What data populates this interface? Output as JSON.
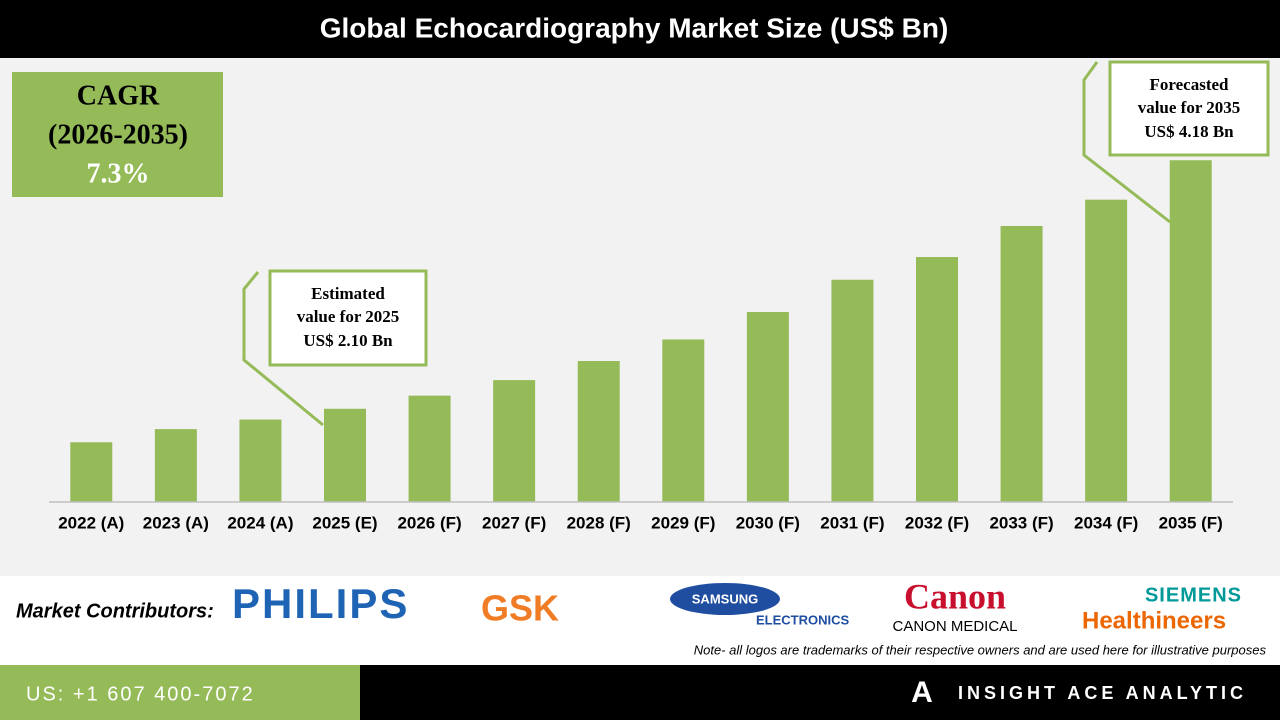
{
  "chart_data": {
    "type": "bar",
    "title": "Global Echocardiography Market Size (US$ Bn)",
    "categories": [
      "2022 (A)",
      "2023 (A)",
      "2024 (A)",
      "2025 (E)",
      "2026 (F)",
      "2027 (F)",
      "2028 (F)",
      "2029 (F)",
      "2030 (F)",
      "2031 (F)",
      "2032 (F)",
      "2033 (F)",
      "2034 (F)",
      "2035 (F)"
    ],
    "values": [
      1.82,
      1.93,
      2.01,
      2.1,
      2.21,
      2.34,
      2.5,
      2.68,
      2.91,
      3.18,
      3.37,
      3.63,
      3.85,
      4.18
    ],
    "color": "#95bb58",
    "ylim": [
      1.32,
      4.5
    ],
    "cagr": {
      "label": [
        "CAGR",
        "(2026-2035)"
      ],
      "value": "7.3%"
    },
    "annotations": [
      {
        "lines": [
          "Estimated",
          "value for 2025",
          "US$ 2.10 Bn"
        ]
      },
      {
        "lines": [
          "Forecasted",
          "value for 2035",
          "US$ 4.18 Bn"
        ]
      }
    ]
  },
  "contributors": {
    "heading": "Market Contributors:",
    "logos": [
      "PHILIPS",
      "GSK",
      "SAMSUNG",
      "ELECTRONICS",
      "Canon",
      "CANON MEDICAL",
      "SIEMENS",
      "Healthineers"
    ],
    "note": "Note- all logos are trademarks of their respective owners and are used here for illustrative purposes"
  },
  "footer": {
    "phone": "US: +1 607 400-7072",
    "brand": "INSIGHT ACE ANALYTIC",
    "icon": "A"
  }
}
